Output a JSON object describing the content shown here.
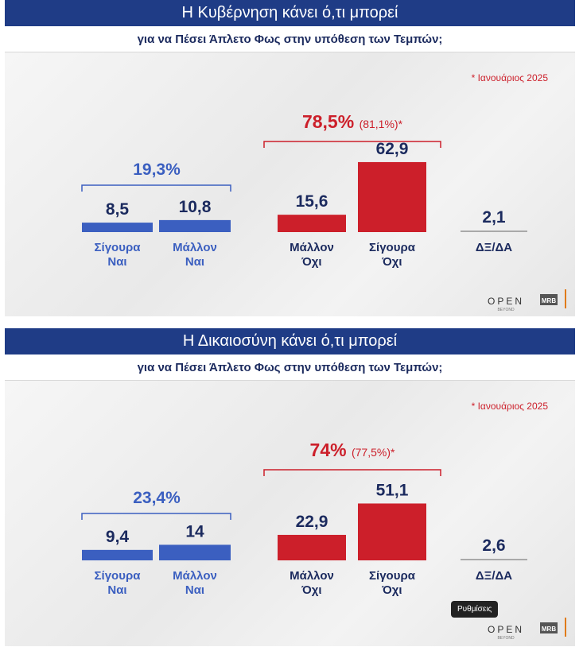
{
  "chart_data": [
    {
      "type": "bar",
      "title": "Η Κυβέρνηση κάνει ό,τι μπορεί",
      "subtitle": "για να Πέσει Άπλετο Φως στην υπόθεση των Τεμπών;",
      "note": "* Ιανουάριος 2025",
      "yes_total": "19,3%",
      "no_total": "78,5%",
      "no_total_prev": "(81,1%)*",
      "bars": [
        {
          "label": [
            "Σίγουρα",
            "Ναι"
          ],
          "value": 8.5,
          "value_label": "8,5",
          "group": "yes"
        },
        {
          "label": [
            "Μάλλον",
            "Ναι"
          ],
          "value": 10.8,
          "value_label": "10,8",
          "group": "yes"
        },
        {
          "label": [
            "Μάλλον",
            "Όχι"
          ],
          "value": 15.6,
          "value_label": "15,6",
          "group": "no"
        },
        {
          "label": [
            "Σίγουρα",
            "Όχι"
          ],
          "value": 62.9,
          "value_label": "62,9",
          "group": "no"
        },
        {
          "label": [
            "ΔΞ/ΔΑ"
          ],
          "value": 2.1,
          "value_label": "2,1",
          "group": "dk"
        }
      ]
    },
    {
      "type": "bar",
      "title": "Η Δικαιοσύνη κάνει ό,τι μπορεί",
      "subtitle": "για να Πέσει Άπλετο Φως στην υπόθεση των Τεμπών;",
      "note": "* Ιανουάριος 2025",
      "yes_total": "23,4%",
      "no_total": "74%",
      "no_total_prev": "(77,5%)*",
      "bars": [
        {
          "label": [
            "Σίγουρα",
            "Ναι"
          ],
          "value": 9.4,
          "value_label": "9,4",
          "group": "yes"
        },
        {
          "label": [
            "Μάλλον",
            "Ναι"
          ],
          "value": 14,
          "value_label": "14",
          "group": "yes"
        },
        {
          "label": [
            "Μάλλον",
            "Όχι"
          ],
          "value": 22.9,
          "value_label": "22,9",
          "group": "no"
        },
        {
          "label": [
            "Σίγουρα",
            "Όχι"
          ],
          "value": 51.1,
          "value_label": "51,1",
          "group": "no"
        },
        {
          "label": [
            "ΔΞ/ΔΑ"
          ],
          "value": 2.6,
          "value_label": "2,6",
          "group": "dk"
        }
      ]
    }
  ],
  "logo": {
    "brand": "OPEN",
    "tagline": "BEYOND",
    "partner": "MRB"
  },
  "colors": {
    "yes": "#3b5fc0",
    "no": "#cc1f2a",
    "dk": "#1b2a5e",
    "title_bg": "#1f3c86"
  },
  "tooltip": "Ρυθμίσεις"
}
